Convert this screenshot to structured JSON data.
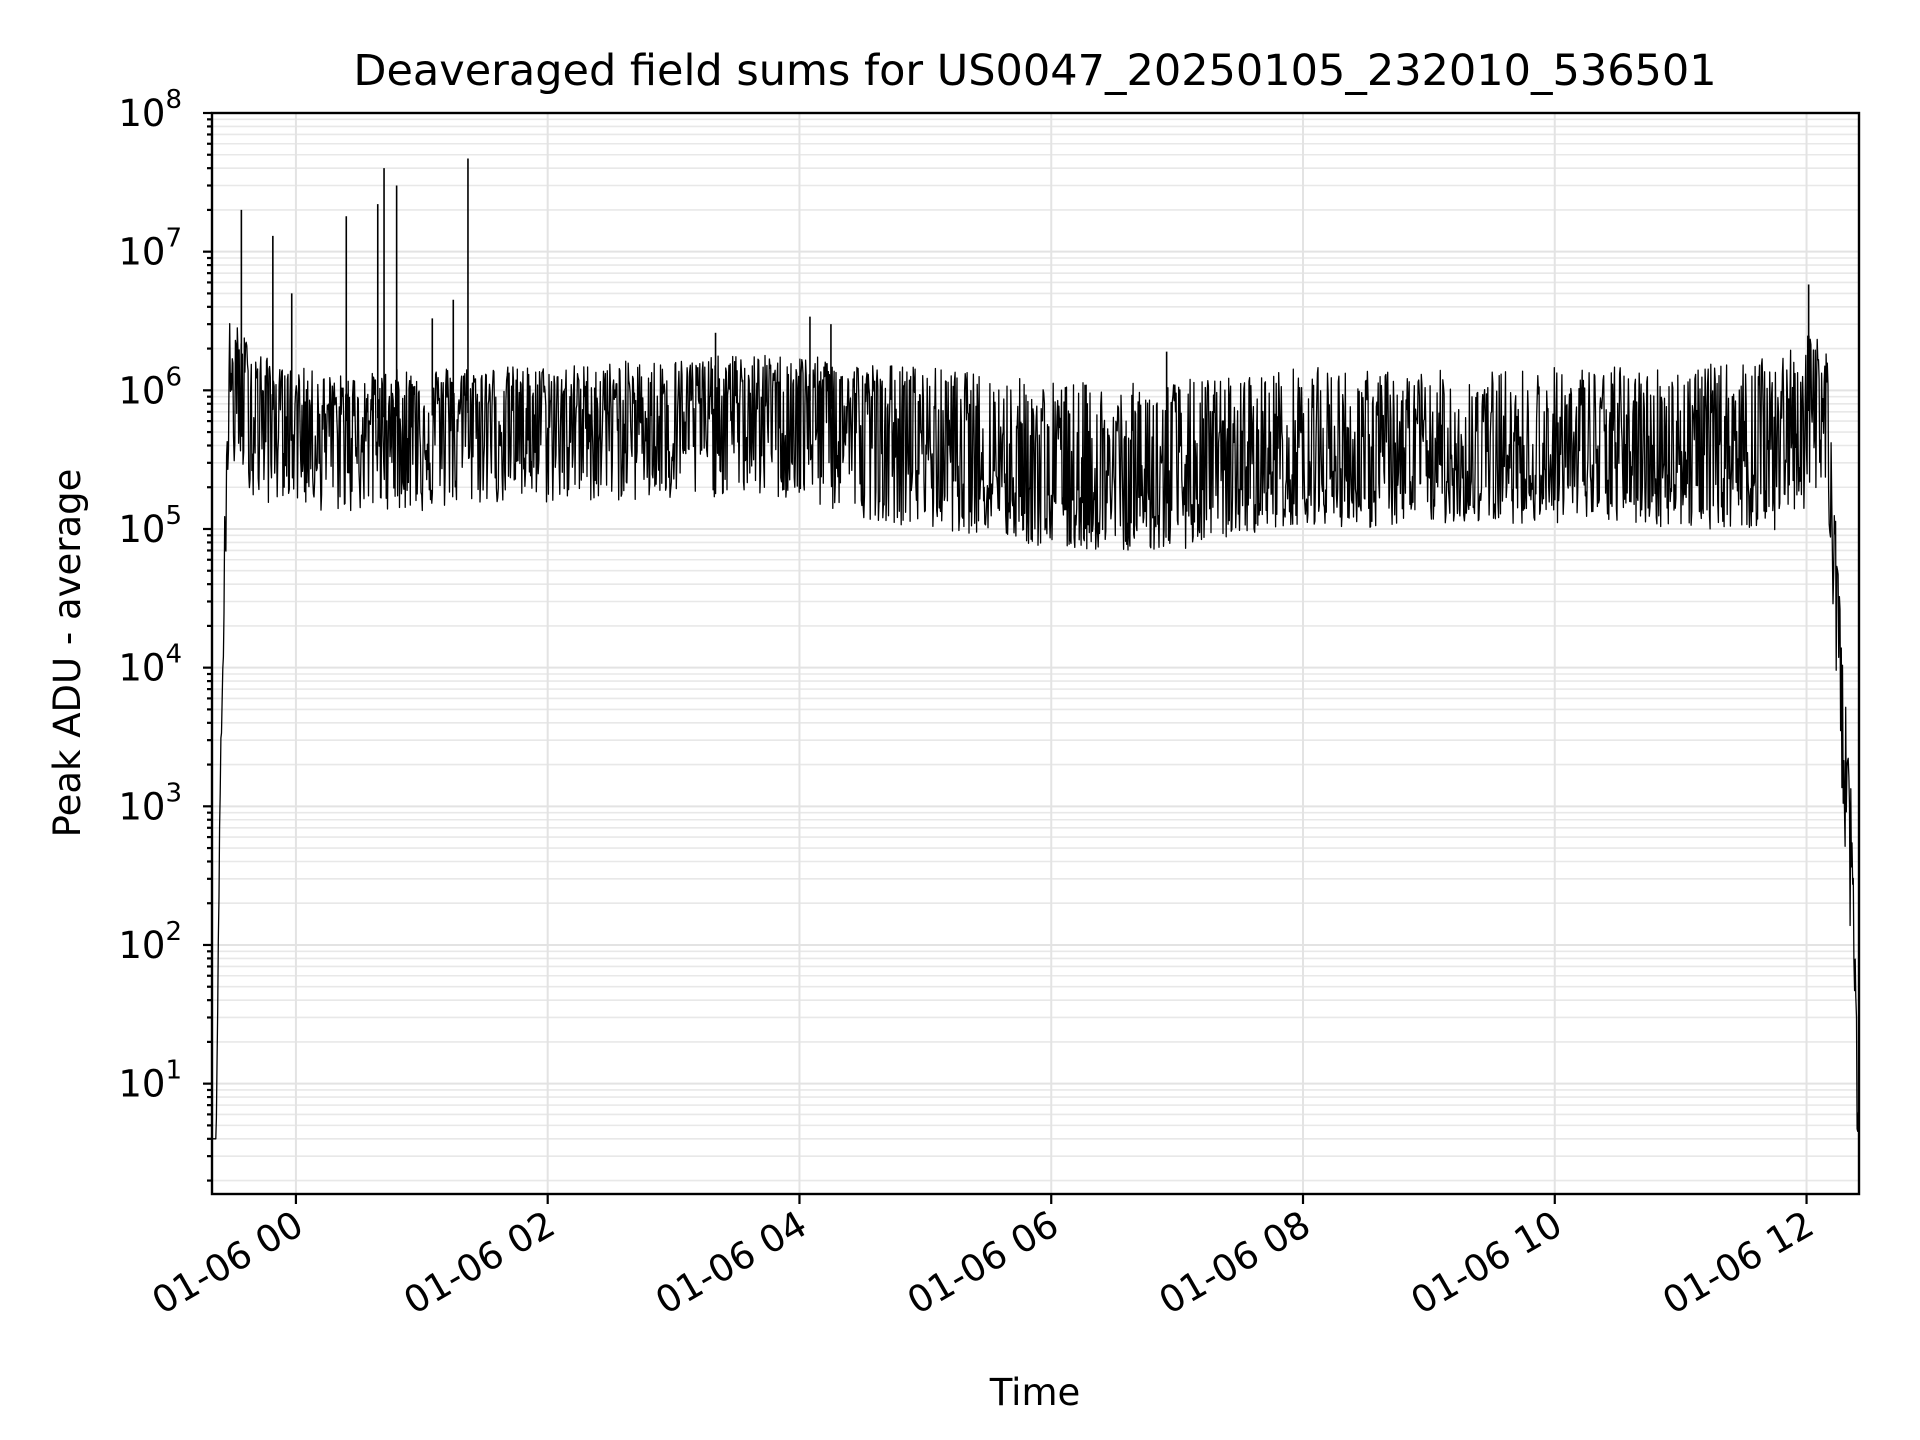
{
  "chart_data": {
    "type": "line",
    "title": "Deaveraged field sums for US0047_20250105_232010_536501",
    "xlabel": "Time",
    "ylabel": "Peak ADU - average",
    "yscale": "log",
    "ylim": [
      1.6,
      100000000
    ],
    "xlim": [
      "2025-01-05 23:20",
      "2025-01-06 12:25"
    ],
    "grid": "on (major and minor)",
    "line_color": "#000000",
    "xticks": [
      "01-06 00",
      "01-06 02",
      "01-06 04",
      "01-06 06",
      "01-06 08",
      "01-06 10",
      "01-06 12"
    ],
    "yticks": [
      {
        "base": "10",
        "exp": "1",
        "value": 10
      },
      {
        "base": "10",
        "exp": "2",
        "value": 100
      },
      {
        "base": "10",
        "exp": "3",
        "value": 1000
      },
      {
        "base": "10",
        "exp": "4",
        "value": 10000
      },
      {
        "base": "10",
        "exp": "5",
        "value": 100000
      },
      {
        "base": "10",
        "exp": "6",
        "value": 1000000
      },
      {
        "base": "10",
        "exp": "7",
        "value": 10000000
      },
      {
        "base": "10",
        "exp": "8",
        "value": 100000000
      }
    ],
    "series": [
      {
        "x": [
          "2025-01-05 23:20",
          "2025-01-05 23:22",
          "2025-01-05 23:24",
          "2025-01-05 23:25",
          "2025-01-05 23:27",
          "2025-01-05 23:29",
          "2025-01-05 23:31",
          "2025-01-05 23:33",
          "2025-01-05 23:36",
          "2025-01-05 23:40",
          "2025-01-05 23:45",
          "2025-01-05 23:50",
          "2025-01-05 23:55",
          "2025-01-06 00:00",
          "2025-01-06 00:15",
          "2025-01-06 00:30",
          "2025-01-06 00:45",
          "2025-01-06 01:00",
          "2025-01-06 01:30",
          "2025-01-06 02:00",
          "2025-01-06 02:30",
          "2025-01-06 03:00",
          "2025-01-06 03:30",
          "2025-01-06 04:00",
          "2025-01-06 04:30",
          "2025-01-06 05:00",
          "2025-01-06 05:30",
          "2025-01-06 06:00",
          "2025-01-06 06:30",
          "2025-01-06 07:00",
          "2025-01-06 07:30",
          "2025-01-06 08:00",
          "2025-01-06 08:30",
          "2025-01-06 09:00",
          "2025-01-06 09:30",
          "2025-01-06 10:00",
          "2025-01-06 10:30",
          "2025-01-06 11:00",
          "2025-01-06 11:30",
          "2025-01-06 11:50",
          "2025-01-06 12:00",
          "2025-01-06 12:10",
          "2025-01-06 12:14",
          "2025-01-06 12:18",
          "2025-01-06 12:21",
          "2025-01-06 12:23",
          "2025-01-06 12:25"
        ],
        "median": [
          4,
          4,
          2000,
          6000,
          500000,
          1000000,
          1200000,
          1100000,
          1000000,
          900000,
          850000,
          800000,
          800000,
          700000,
          600000,
          600000,
          650000,
          650000,
          700000,
          650000,
          700000,
          700000,
          800000,
          900000,
          600000,
          450000,
          350000,
          200000,
          200000,
          180000,
          250000,
          300000,
          280000,
          280000,
          300000,
          300000,
          320000,
          350000,
          400000,
          600000,
          700000,
          800000,
          60000,
          5000,
          800,
          50,
          4
        ],
        "low": [
          4,
          4,
          1500,
          5000,
          100000,
          150000,
          300000,
          250000,
          250000,
          150000,
          150000,
          150000,
          180000,
          150000,
          130000,
          130000,
          140000,
          130000,
          150000,
          150000,
          160000,
          150000,
          180000,
          150000,
          120000,
          100000,
          90000,
          70000,
          70000,
          70000,
          90000,
          110000,
          100000,
          110000,
          110000,
          110000,
          110000,
          100000,
          100000,
          90000,
          150000,
          150000,
          10000,
          600,
          100,
          5,
          4
        ],
        "high": [
          4,
          4,
          3000,
          8000,
          1800000,
          4000000,
          3500000,
          2500000,
          2500000,
          2000000,
          1800000,
          1500000,
          1400000,
          1500000,
          1300000,
          1300000,
          1400000,
          1500000,
          1500000,
          1500000,
          1600000,
          1700000,
          1800000,
          1800000,
          1600000,
          1500000,
          1300000,
          1200000,
          1100000,
          1200000,
          1300000,
          1500000,
          1400000,
          1400000,
          1400000,
          1500000,
          1500000,
          1500000,
          1600000,
          1800000,
          2500000,
          2500000,
          100000,
          8000,
          1500,
          150,
          4
        ]
      }
    ],
    "spikes": [
      {
        "x": "2025-01-05 23:34",
        "y": 20000000
      },
      {
        "x": "2025-01-05 23:49",
        "y": 13000000
      },
      {
        "x": "2025-01-05 23:58",
        "y": 5000000
      },
      {
        "x": "2025-01-06 00:24",
        "y": 18000000
      },
      {
        "x": "2025-01-06 00:39",
        "y": 22000000
      },
      {
        "x": "2025-01-06 00:42",
        "y": 40000000
      },
      {
        "x": "2025-01-06 00:48",
        "y": 30000000
      },
      {
        "x": "2025-01-06 01:05",
        "y": 3300000
      },
      {
        "x": "2025-01-06 01:15",
        "y": 4500000
      },
      {
        "x": "2025-01-06 01:22",
        "y": 47000000
      },
      {
        "x": "2025-01-06 03:20",
        "y": 2600000
      },
      {
        "x": "2025-01-06 04:05",
        "y": 3400000
      },
      {
        "x": "2025-01-06 04:15",
        "y": 3000000
      },
      {
        "x": "2025-01-06 06:55",
        "y": 1900000
      },
      {
        "x": "2025-01-06 12:01",
        "y": 5800000
      }
    ]
  }
}
